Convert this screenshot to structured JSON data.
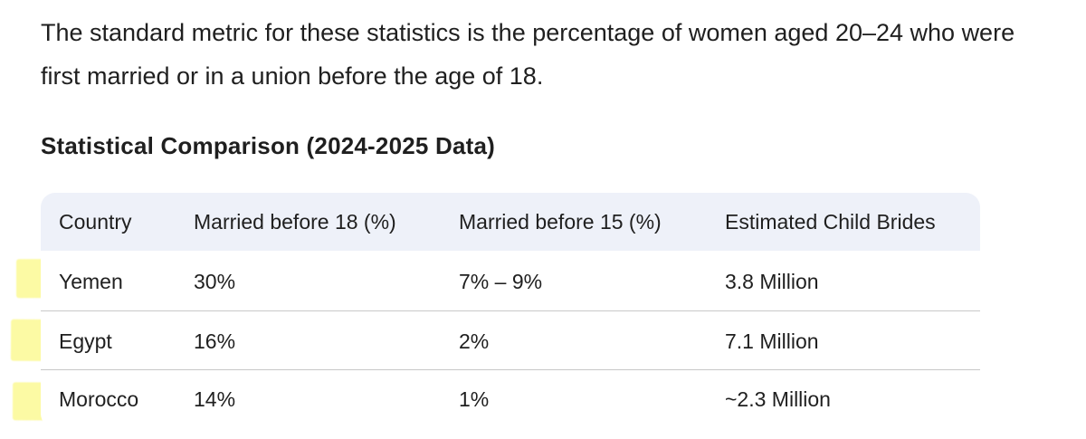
{
  "intro": {
    "text": "The standard metric for these statistics is the percentage of women aged 20–24 who were first married or in a union before the age of 18."
  },
  "section": {
    "heading": "Statistical Comparison (2024-2025 Data)"
  },
  "table": {
    "headers": [
      "Country",
      "Married before 18 (%)",
      "Married before 15 (%)",
      "Estimated Child Brides"
    ],
    "rows": [
      [
        "Yemen",
        "30%",
        "7% – 9%",
        "3.8 Million"
      ],
      [
        "Egypt",
        "16%",
        "2%",
        "7.1 Million"
      ],
      [
        "Morocco",
        "14%",
        "1%",
        "~2.3 Million"
      ]
    ]
  },
  "colors": {
    "header_bg": "#eef1f9",
    "highlight": "#faf55a",
    "text": "#1f1f1f",
    "divider": "#c8c8c8"
  }
}
